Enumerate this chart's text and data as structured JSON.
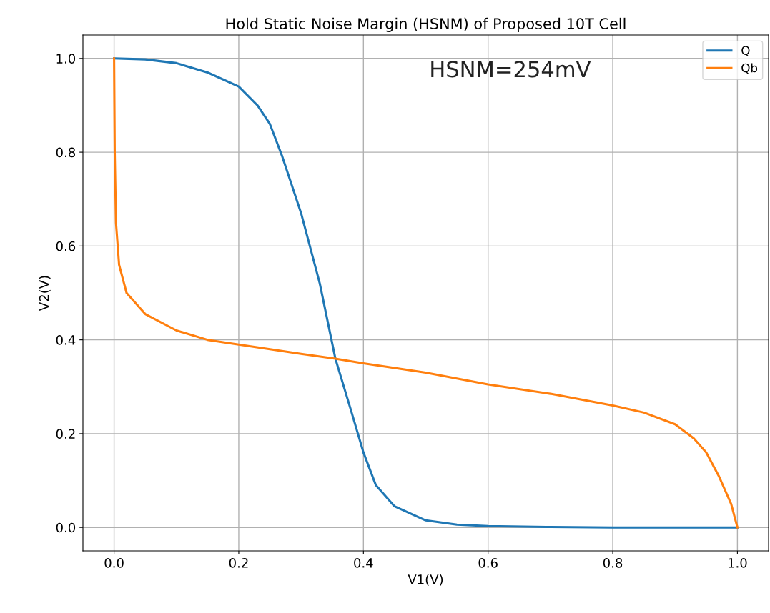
{
  "chart_data": {
    "type": "line",
    "title": "Hold Static Noise Margin (HSNM) of Proposed 10T Cell",
    "xlabel": "V1(V)",
    "ylabel": "V2(V)",
    "annotations": [
      "HSNM=254mV"
    ],
    "series": [
      {
        "name": "Q",
        "color": "#1f77b4",
        "x": [
          0,
          0.05,
          0.1,
          0.15,
          0.2,
          0.23,
          0.25,
          0.27,
          0.3,
          0.33,
          0.355,
          0.38,
          0.4,
          0.42,
          0.45,
          0.5,
          0.55,
          0.6,
          0.7,
          0.8,
          0.9,
          1.0
        ],
        "values": [
          1.0,
          0.998,
          0.99,
          0.97,
          0.94,
          0.9,
          0.86,
          0.79,
          0.67,
          0.52,
          0.36,
          0.25,
          0.16,
          0.09,
          0.045,
          0.015,
          0.006,
          0.003,
          0.001,
          0,
          0,
          0
        ]
      },
      {
        "name": "Qb",
        "color": "#ff7f0e",
        "x": [
          0,
          0.001,
          0.003,
          0.008,
          0.02,
          0.05,
          0.1,
          0.15,
          0.2,
          0.3,
          0.355,
          0.4,
          0.5,
          0.6,
          0.7,
          0.8,
          0.85,
          0.9,
          0.93,
          0.95,
          0.97,
          0.99,
          1.0
        ],
        "values": [
          1.0,
          0.8,
          0.65,
          0.56,
          0.5,
          0.455,
          0.42,
          0.4,
          0.39,
          0.37,
          0.36,
          0.35,
          0.33,
          0.305,
          0.285,
          0.26,
          0.245,
          0.22,
          0.19,
          0.16,
          0.11,
          0.05,
          0.0
        ]
      }
    ],
    "xlim": [
      -0.05,
      1.05
    ],
    "ylim": [
      -0.05,
      1.05
    ],
    "xticks": [
      {
        "value": 0,
        "label": "0.0"
      },
      0.2,
      0.4,
      0.6,
      0.8,
      {
        "value": 1,
        "label": "1.0"
      }
    ],
    "yticks": [
      {
        "value": 0,
        "label": "0.0"
      },
      0.2,
      0.4,
      0.6,
      0.8,
      {
        "value": 1,
        "label": "1.0"
      }
    ],
    "grid": true,
    "legend": "top right",
    "marker": "none",
    "line_style": "solid"
  }
}
